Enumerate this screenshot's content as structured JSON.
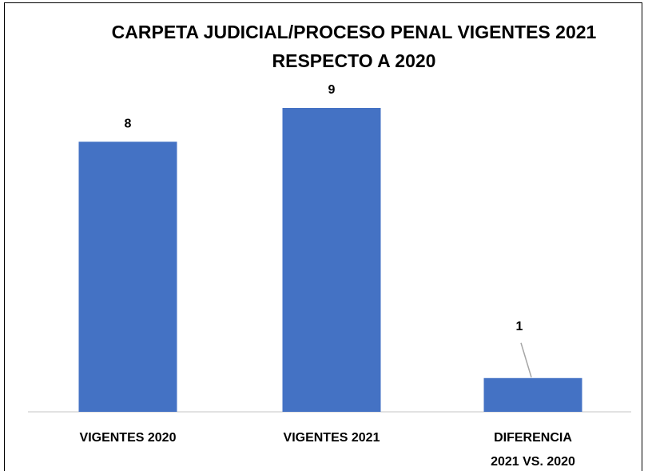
{
  "chart_data": {
    "type": "bar",
    "title": "CARPETA JUDICIAL/PROCESO PENAL VIGENTES 2021 RESPECTO A 2020",
    "categories": [
      "VIGENTES 2020",
      "VIGENTES 2021",
      "DIFERENCIA 2021 VS. 2020"
    ],
    "values": [
      8,
      9,
      1
    ],
    "color": "#4472c4"
  }
}
